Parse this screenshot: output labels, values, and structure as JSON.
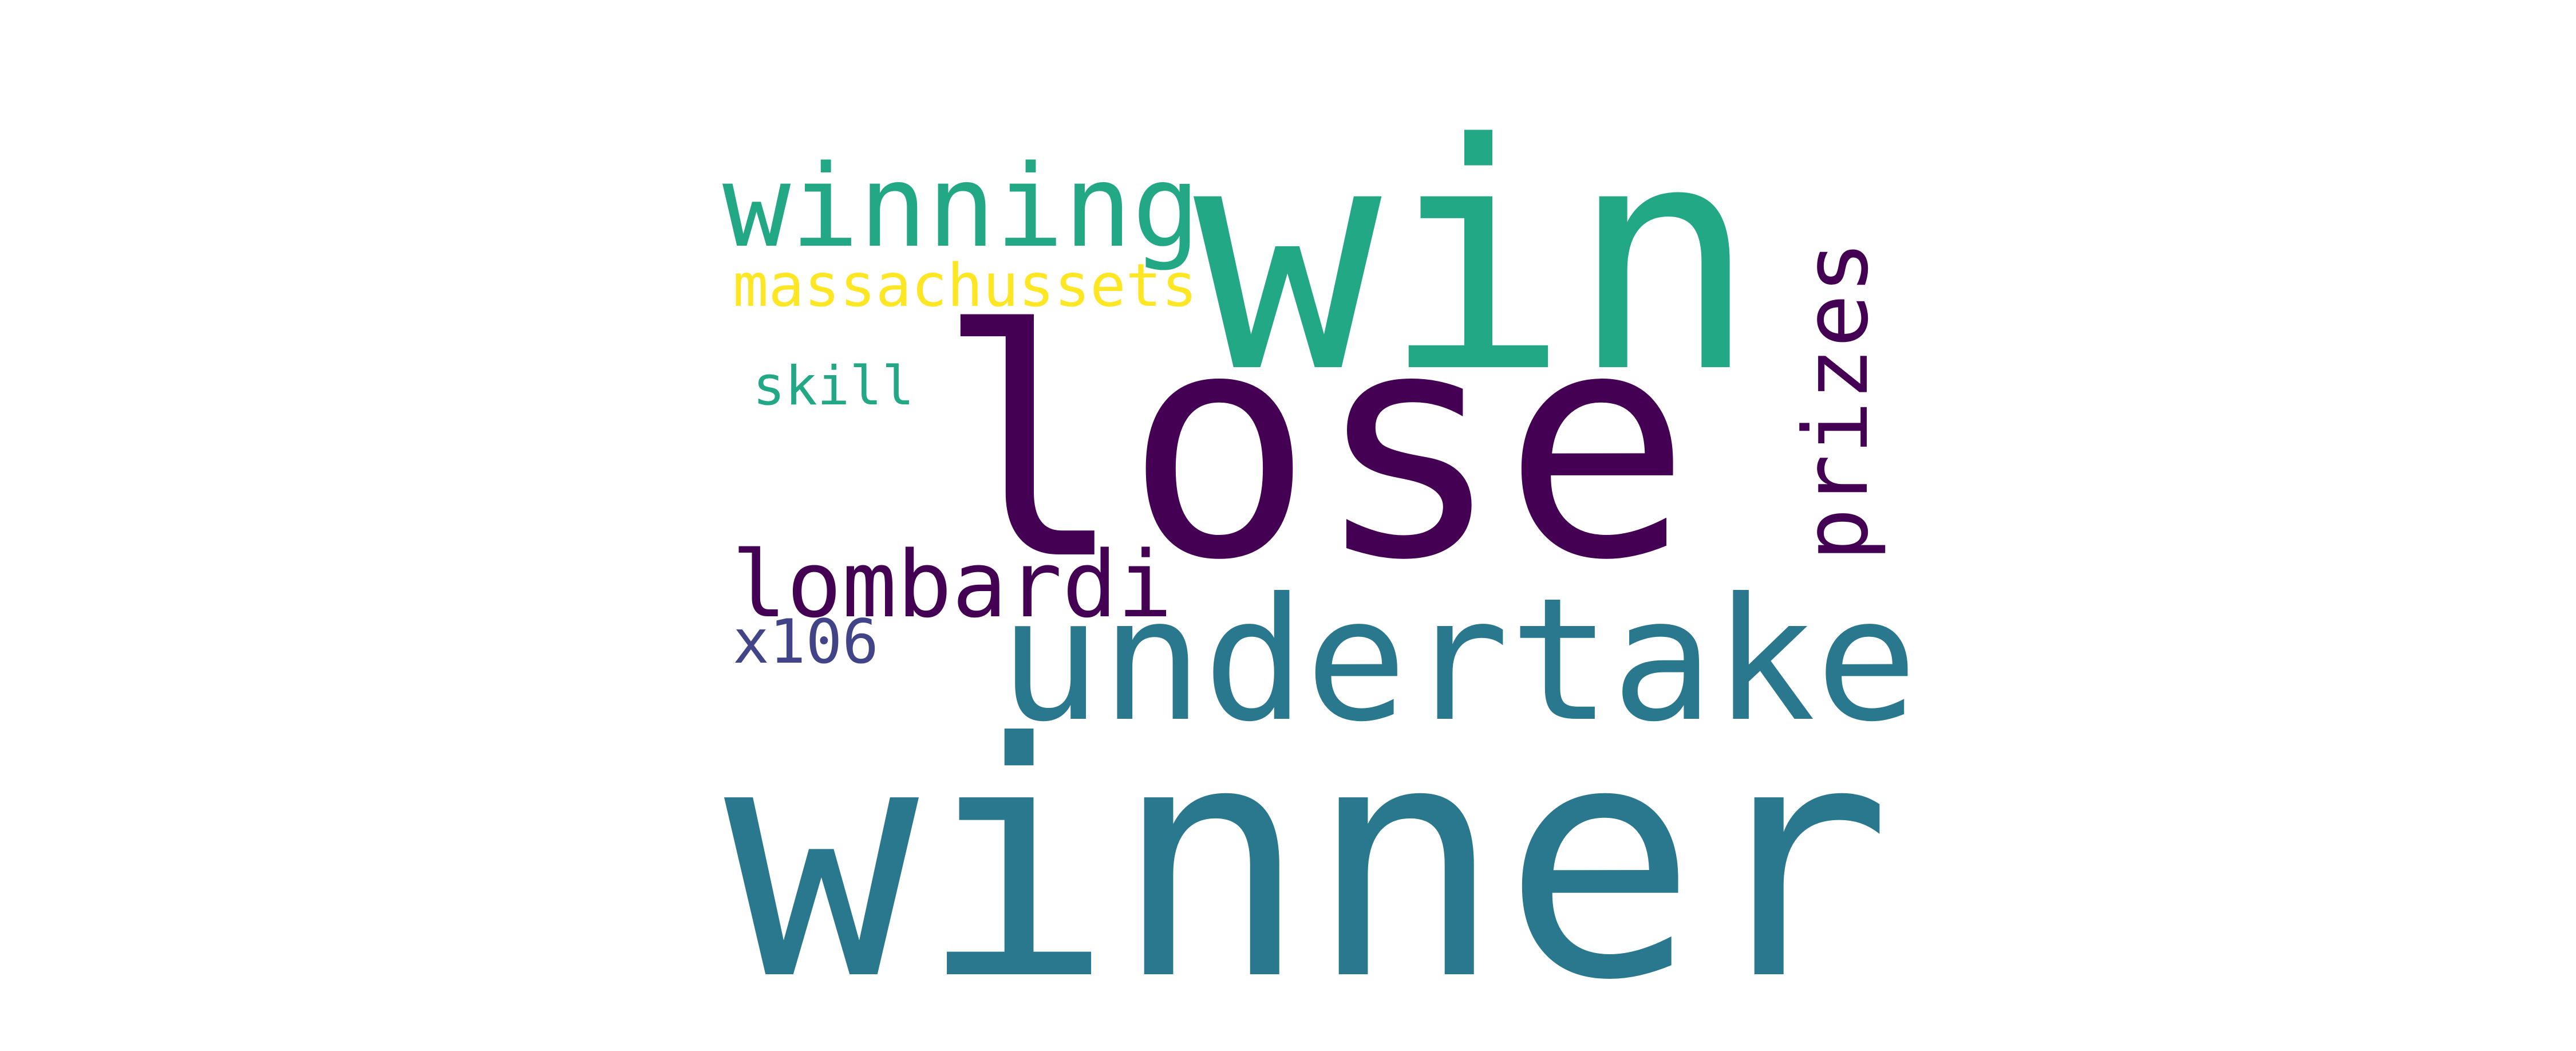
{
  "word_cloud": {
    "words": [
      {
        "key": "win",
        "text": "win",
        "color": "#22a884"
      },
      {
        "key": "lose",
        "text": "lose",
        "color": "#440154"
      },
      {
        "key": "winner",
        "text": "winner",
        "color": "#2a788e"
      },
      {
        "key": "undertake",
        "text": "undertake",
        "color": "#2a788e"
      },
      {
        "key": "winning",
        "text": "winning",
        "color": "#22a884"
      },
      {
        "key": "prizes",
        "text": "prizes",
        "color": "#440154",
        "orientation": "vertical"
      },
      {
        "key": "massachussets",
        "text": "massachussets",
        "color": "#fde725"
      },
      {
        "key": "lombardi",
        "text": "lombardi",
        "color": "#440154"
      },
      {
        "key": "skill",
        "text": "skill",
        "color": "#22a884"
      },
      {
        "key": "x106",
        "text": "x106",
        "color": "#414487"
      }
    ]
  }
}
